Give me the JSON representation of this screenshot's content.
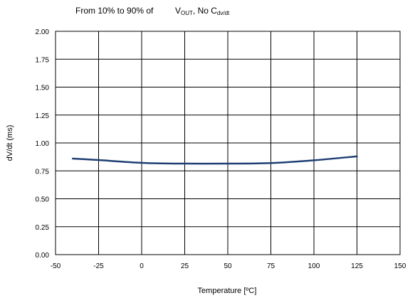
{
  "title": {
    "prefix": "From 10% to 90% of",
    "v_letter": "V",
    "v_subscript": "OUT",
    "separator": ",  No C",
    "c_subscript": "dv/dt"
  },
  "chart_data": {
    "type": "line",
    "xlabel": "Temperature [ºC]",
    "ylabel": "dV/dt (ms)",
    "xlim": [
      -50,
      150
    ],
    "ylim": [
      0,
      2
    ],
    "x_ticks": [
      -50,
      -25,
      0,
      25,
      50,
      75,
      100,
      125,
      150
    ],
    "x_tick_labels": [
      "-50",
      "-25",
      "0",
      "25",
      "50",
      "75",
      "100",
      "125",
      "150"
    ],
    "y_ticks": [
      0,
      0.25,
      0.5,
      0.75,
      1.0,
      1.25,
      1.5,
      1.75,
      2.0
    ],
    "y_tick_labels": [
      "0.00",
      "0.25",
      "0.50",
      "0.75",
      "1.00",
      "1.25",
      "1.50",
      "1.75",
      "2.00"
    ],
    "grid": true,
    "legend": "none",
    "series": [
      {
        "color": "#1f3f73",
        "x": [
          -40,
          -25,
          0,
          25,
          50,
          75,
          100,
          125
        ],
        "y": [
          0.86,
          0.847,
          0.822,
          0.815,
          0.815,
          0.82,
          0.845,
          0.88
        ]
      }
    ]
  }
}
